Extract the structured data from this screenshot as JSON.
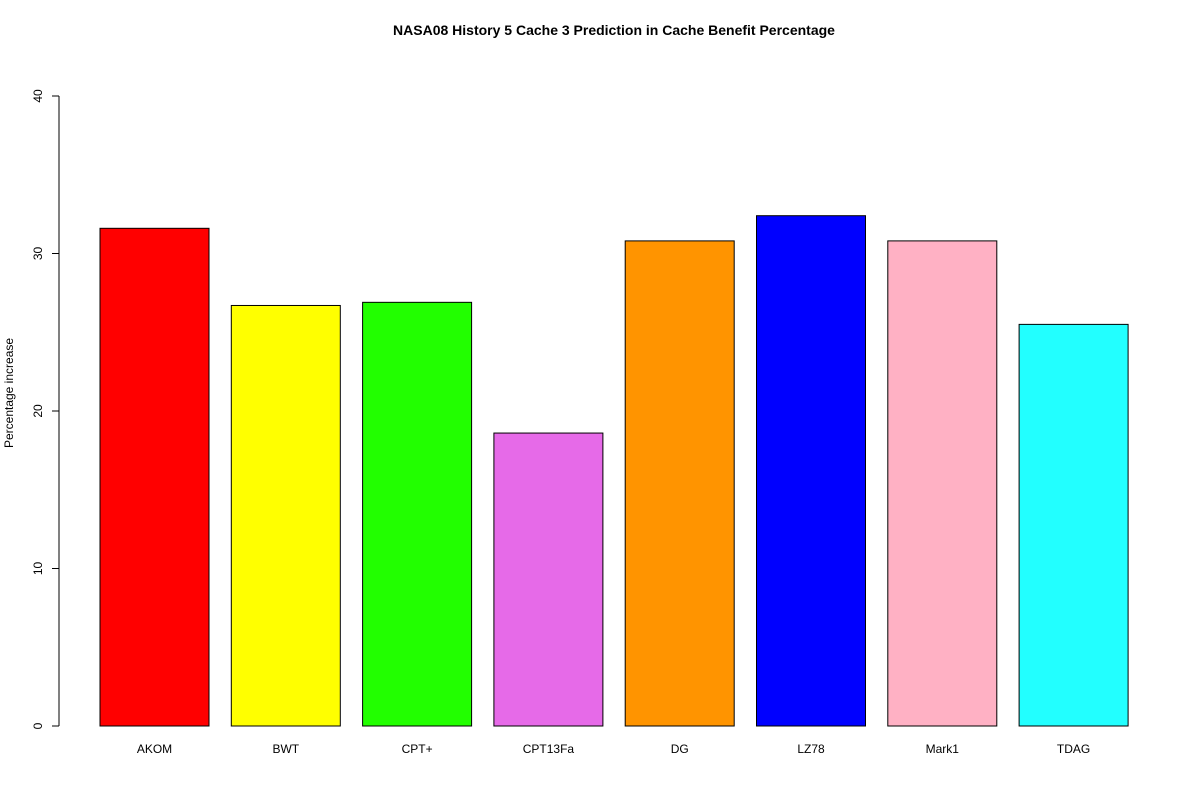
{
  "chart_data": {
    "type": "bar",
    "title": "NASA08  History  5  Cache  3 Prediction in Cache Benefit Percentage",
    "xlabel": "",
    "ylabel": "Percentage increase",
    "ylim": [
      0,
      40
    ],
    "yticks": [
      0,
      10,
      20,
      30,
      40
    ],
    "categories": [
      "AKOM",
      "BWT",
      "CPT+",
      "CPT13Fa",
      "DG",
      "LZ78",
      "Mark1",
      "TDAG"
    ],
    "values": [
      31.6,
      26.7,
      26.9,
      18.6,
      30.8,
      32.4,
      30.8,
      25.5
    ],
    "colors": [
      "#ff0000",
      "#ffff00",
      "#22ff00",
      "#e66ae8",
      "#ff9400",
      "#0000ff",
      "#ffb1c4",
      "#22ffff"
    ],
    "grid": false,
    "legend": "none"
  }
}
